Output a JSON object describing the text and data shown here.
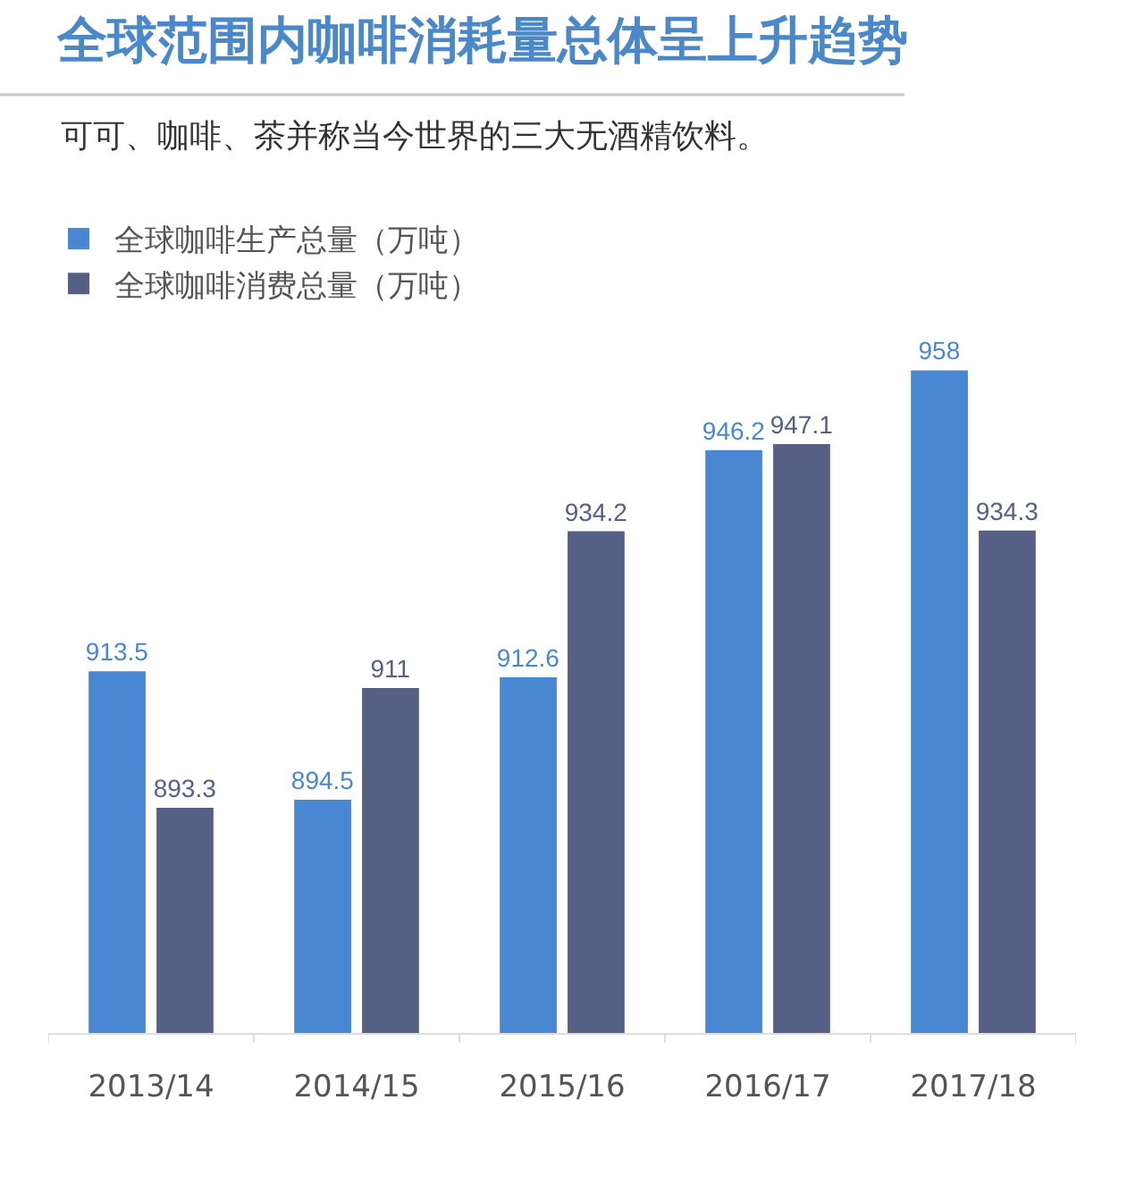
{
  "chart_data": {
    "type": "bar",
    "title": "全球范围内咖啡消耗量总体呈上升趋势",
    "subtitle": "可可、咖啡、茶并称当今世界的三大无酒精饮料。",
    "categories": [
      "2013/14",
      "2014/15",
      "2015/16",
      "2016/17",
      "2017/18"
    ],
    "series": [
      {
        "name": "全球咖啡生产总量（万吨）",
        "color": "#4a87d3",
        "values": [
          913.5,
          894.5,
          912.6,
          946.2,
          958
        ]
      },
      {
        "name": "全球咖啡消费总量（万吨）",
        "color": "#566086",
        "values": [
          893.3,
          911,
          934.2,
          947.1,
          934.3
        ]
      }
    ],
    "ylim": [
      860,
      980
    ],
    "data_labels": true,
    "legend": "top left",
    "tick_labels": "x"
  }
}
